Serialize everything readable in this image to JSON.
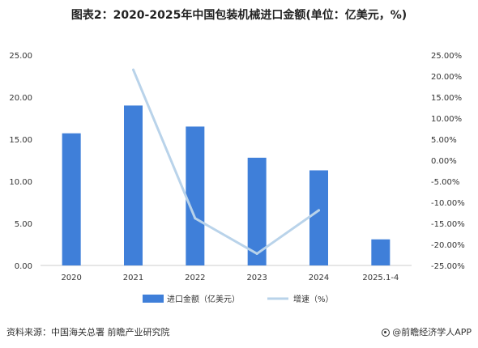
{
  "title": "图表2：2020-2025年中国包装机械进口金额(单位：亿美元，%)",
  "source": "资料来源：中国海关总署 前瞻产业研究院",
  "brand": "@前瞻经济学人APP",
  "colors": {
    "bar": "#3f7fd9",
    "line": "#b9d3ea",
    "axis": "#cccccc",
    "text": "#333333"
  },
  "chart_data": {
    "type": "bar",
    "categories": [
      "2020",
      "2021",
      "2022",
      "2023",
      "2024",
      "2025.1-4"
    ],
    "series": [
      {
        "name": "进口金额（亿美元）",
        "type": "bar",
        "axis": "left",
        "values": [
          15.7,
          19.0,
          16.5,
          12.8,
          11.3,
          3.1
        ]
      },
      {
        "name": "增速（%）",
        "type": "line",
        "axis": "right",
        "values": [
          null,
          21.5,
          -13.8,
          -22.2,
          -11.9,
          null
        ]
      }
    ],
    "y_left": {
      "min": 0,
      "max": 25,
      "ticks": [
        "0.00",
        "5.00",
        "10.00",
        "15.00",
        "20.00",
        "25.00"
      ]
    },
    "y_right": {
      "min": -25,
      "max": 25,
      "ticks": [
        "-25.00%",
        "-20.00%",
        "-15.00%",
        "-10.00%",
        "-5.00%",
        "0.00%",
        "5.00%",
        "10.00%",
        "15.00%",
        "20.00%",
        "25.00%"
      ]
    },
    "legend_position": "bottom-center",
    "grid": false
  }
}
